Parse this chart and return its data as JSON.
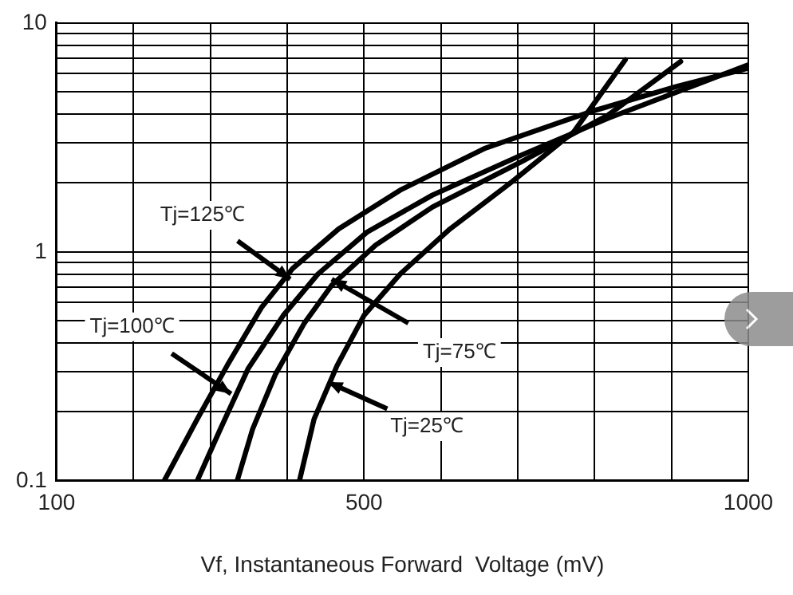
{
  "chart_data": {
    "type": "line",
    "xlabel": "Vf, Instantaneous Forward  Voltage (mV)",
    "log": "y",
    "grid": true,
    "legend": false,
    "marker": "none",
    "line_style": "solid",
    "xlim": [
      100,
      1000
    ],
    "ylim": [
      0.1,
      10
    ],
    "xticks": [
      100,
      {
        "value": 200,
        "label": null
      },
      {
        "value": 300,
        "label": null
      },
      {
        "value": 400,
        "label": null
      },
      500,
      {
        "value": 600,
        "label": null
      },
      {
        "value": 700,
        "label": null
      },
      {
        "value": 800,
        "label": null
      },
      {
        "value": 900,
        "label": null
      },
      1000
    ],
    "yticks": [
      0.1,
      {
        "value": 0.2,
        "label": null
      },
      {
        "value": 0.3,
        "label": null
      },
      {
        "value": 0.4,
        "label": null
      },
      {
        "value": 0.5,
        "label": null
      },
      {
        "value": 0.6,
        "label": null
      },
      {
        "value": 0.7,
        "label": null
      },
      {
        "value": 0.8,
        "label": null
      },
      {
        "value": 0.9,
        "label": null
      },
      1,
      {
        "value": 2,
        "label": null
      },
      {
        "value": 3,
        "label": null
      },
      {
        "value": 4,
        "label": null
      },
      {
        "value": 5,
        "label": null
      },
      {
        "value": 6,
        "label": null
      },
      {
        "value": 7,
        "label": null
      },
      {
        "value": 8,
        "label": null
      },
      {
        "value": 9,
        "label": null
      },
      10
    ],
    "series": [
      {
        "color": "#000000",
        "x": [
          240,
          283,
          322,
          367,
          407,
          467,
          547,
          658,
          795,
          907,
          1000
        ],
        "values": [
          0.1,
          0.186,
          0.319,
          0.574,
          0.845,
          1.26,
          1.86,
          2.84,
          4.1,
          5.28,
          6.35
        ]
      },
      {
        "color": "#000000",
        "x": [
          283,
          313,
          349,
          395,
          440,
          504,
          589,
          705,
          818,
          932,
          1000
        ],
        "values": [
          0.1,
          0.168,
          0.308,
          0.528,
          0.8,
          1.22,
          1.77,
          2.65,
          3.84,
          5.37,
          6.57
        ]
      },
      {
        "color": "#000000",
        "x": [
          335,
          355,
          385,
          422,
          458,
          515,
          589,
          705,
          818,
          912
        ],
        "values": [
          0.1,
          0.168,
          0.293,
          0.486,
          0.715,
          1.07,
          1.57,
          2.48,
          3.97,
          6.79
        ]
      },
      {
        "color": "#000000",
        "x": [
          416,
          435,
          465,
          500,
          547,
          612,
          693,
          773,
          840
        ],
        "values": [
          0.1,
          0.186,
          0.319,
          0.528,
          0.8,
          1.26,
          2.03,
          3.35,
          6.91
        ]
      }
    ],
    "annotations": [
      {
        "text": "Tj=125℃",
        "x": 404,
        "y": 0.76
      },
      {
        "text": "Tj=100℃",
        "x": 327,
        "y": 0.24
      },
      {
        "text": "Tj=75℃",
        "x": 458,
        "y": 0.76
      },
      {
        "text": "Tj=25℃",
        "x": 453,
        "y": 0.27
      }
    ]
  }
}
